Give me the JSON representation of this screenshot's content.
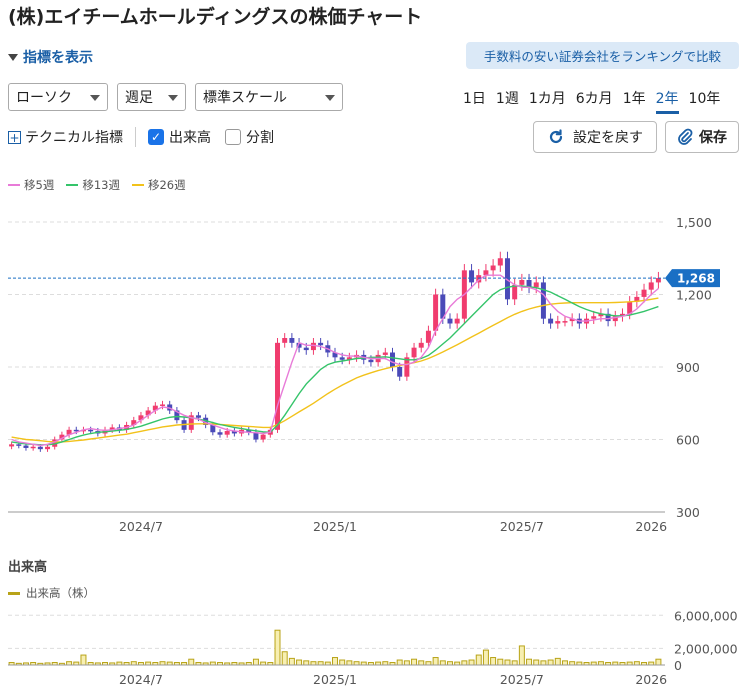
{
  "page": {
    "title": "(株)エイチームホールディングスの株価チャート",
    "indicator_toggle": "指標を表示",
    "banner": "手数料の安い証券会社をランキングで比較"
  },
  "controls": {
    "chart_type": "ローソク",
    "interval": "週足",
    "scale": "標準スケール",
    "periods": [
      "1日",
      "1週",
      "1カ月",
      "6カ月",
      "1年",
      "2年",
      "10年"
    ],
    "active_period": "2年",
    "technical": "テクニカル指標",
    "volume_checkbox": "出来高",
    "volume_checked": true,
    "split_checkbox": "分割",
    "split_checked": false,
    "reset_button": "設定を戻す",
    "save_button": "保存"
  },
  "colors": {
    "up": "#f03c6e",
    "down": "#4a4ab8",
    "ma5": "#e87bd8",
    "ma13": "#35c46a",
    "ma26": "#f2c21b",
    "volume": "#b8a318",
    "accent": "#1a5fa6",
    "price_tag": "#1a6fc4"
  },
  "chart_data": [
    {
      "type": "candlestick",
      "interval": "weekly",
      "series_names": [
        "移5週",
        "移13週",
        "移26週"
      ],
      "ylim": [
        300,
        1500
      ],
      "yticks": [
        "1,500",
        "1,200",
        "900",
        "600",
        "300"
      ],
      "ytick_values": [
        1500,
        1200,
        900,
        600,
        300
      ],
      "xticks": [
        "2024/7",
        "2025/1",
        "2025/7",
        "2026"
      ],
      "current_price": 1268,
      "current_price_label": "1,268",
      "weekly_close": [
        580,
        575,
        565,
        570,
        560,
        570,
        600,
        620,
        640,
        635,
        640,
        635,
        625,
        640,
        650,
        640,
        660,
        680,
        700,
        720,
        740,
        745,
        720,
        680,
        640,
        700,
        690,
        660,
        630,
        620,
        635,
        625,
        640,
        630,
        600,
        620,
        640,
        1000,
        1020,
        1000,
        980,
        970,
        1000,
        990,
        960,
        940,
        930,
        940,
        950,
        930,
        920,
        950,
        960,
        900,
        860,
        940,
        980,
        1000,
        1050,
        1200,
        1100,
        1080,
        1100,
        1300,
        1250,
        1280,
        1300,
        1320,
        1350,
        1180,
        1240,
        1260,
        1230,
        1250,
        1100,
        1080,
        1090,
        1090,
        1100,
        1080,
        1100,
        1110,
        1120,
        1090,
        1110,
        1120,
        1170,
        1190,
        1220,
        1250,
        1268
      ],
      "ma5": [
        600,
        590,
        585,
        580,
        575,
        580,
        590,
        605,
        620,
        630,
        640,
        645,
        640,
        638,
        640,
        645,
        650,
        660,
        680,
        700,
        720,
        735,
        730,
        715,
        700,
        690,
        685,
        670,
        660,
        650,
        640,
        635,
        632,
        630,
        628,
        625,
        630,
        740,
        830,
        920,
        1000,
        990,
        990,
        985,
        975,
        960,
        950,
        945,
        945,
        940,
        935,
        935,
        935,
        920,
        910,
        910,
        920,
        940,
        980,
        1050,
        1100,
        1150,
        1180,
        1200,
        1230,
        1260,
        1280,
        1280,
        1280,
        1260,
        1240,
        1230,
        1230,
        1220,
        1200,
        1160,
        1130,
        1110,
        1100,
        1090,
        1090,
        1095,
        1100,
        1100,
        1105,
        1110,
        1120,
        1140,
        1170,
        1200,
        1225
      ],
      "ma13": [
        590,
        585,
        582,
        580,
        578,
        578,
        582,
        590,
        600,
        610,
        618,
        625,
        630,
        632,
        635,
        638,
        642,
        648,
        655,
        665,
        675,
        685,
        692,
        695,
        693,
        690,
        685,
        678,
        670,
        662,
        656,
        650,
        645,
        640,
        636,
        632,
        630,
        660,
        700,
        745,
        790,
        830,
        860,
        890,
        910,
        920,
        925,
        930,
        935,
        937,
        940,
        940,
        942,
        938,
        934,
        930,
        930,
        935,
        948,
        970,
        995,
        1020,
        1050,
        1080,
        1110,
        1140,
        1170,
        1200,
        1220,
        1230,
        1235,
        1235,
        1232,
        1228,
        1220,
        1210,
        1195,
        1180,
        1165,
        1150,
        1138,
        1128,
        1120,
        1115,
        1112,
        1112,
        1115,
        1122,
        1130,
        1140,
        1150
      ],
      "ma26": [
        610,
        605,
        600,
        598,
        595,
        592,
        590,
        590,
        592,
        595,
        598,
        602,
        606,
        610,
        614,
        618,
        622,
        628,
        634,
        640,
        646,
        652,
        656,
        660,
        662,
        664,
        665,
        665,
        664,
        662,
        660,
        658,
        656,
        654,
        652,
        650,
        650,
        662,
        678,
        696,
        714,
        732,
        750,
        770,
        790,
        808,
        825,
        840,
        855,
        866,
        876,
        885,
        893,
        900,
        906,
        912,
        918,
        925,
        935,
        948,
        962,
        977,
        992,
        1008,
        1024,
        1040,
        1056,
        1072,
        1088,
        1104,
        1118,
        1130,
        1140,
        1148,
        1155,
        1160,
        1163,
        1165,
        1166,
        1166,
        1166,
        1166,
        1166,
        1166,
        1167,
        1168,
        1170,
        1172,
        1175,
        1180,
        1185
      ]
    },
    {
      "type": "bar",
      "title": "出来高",
      "series_name": "出来高（株）",
      "ylim": [
        0,
        7000000
      ],
      "yticks": [
        "6,000,000",
        "2,000,000",
        "0"
      ],
      "ytick_values": [
        6000000,
        2000000,
        0
      ],
      "xticks": [
        "2024/7",
        "2025/1",
        "2025/7",
        "2026"
      ],
      "weekly_volume": [
        300000,
        200000,
        250000,
        300000,
        200000,
        250000,
        300000,
        200000,
        400000,
        350000,
        1200000,
        300000,
        250000,
        300000,
        250000,
        350000,
        300000,
        400000,
        300000,
        350000,
        300000,
        400000,
        350000,
        300000,
        300000,
        700000,
        300000,
        250000,
        350000,
        300000,
        250000,
        300000,
        250000,
        300000,
        700000,
        350000,
        300000,
        4200000,
        1600000,
        800000,
        600000,
        500000,
        400000,
        400000,
        350000,
        900000,
        600000,
        500000,
        400000,
        350000,
        300000,
        350000,
        400000,
        300000,
        600000,
        500000,
        700000,
        500000,
        400000,
        900000,
        500000,
        400000,
        350000,
        500000,
        600000,
        1200000,
        1800000,
        900000,
        700000,
        600000,
        500000,
        2300000,
        700000,
        600000,
        500000,
        600000,
        800000,
        500000,
        400000,
        350000,
        300000,
        350000,
        400000,
        300000,
        350000,
        300000,
        350000,
        400000,
        300000,
        350000,
        700000
      ]
    }
  ]
}
